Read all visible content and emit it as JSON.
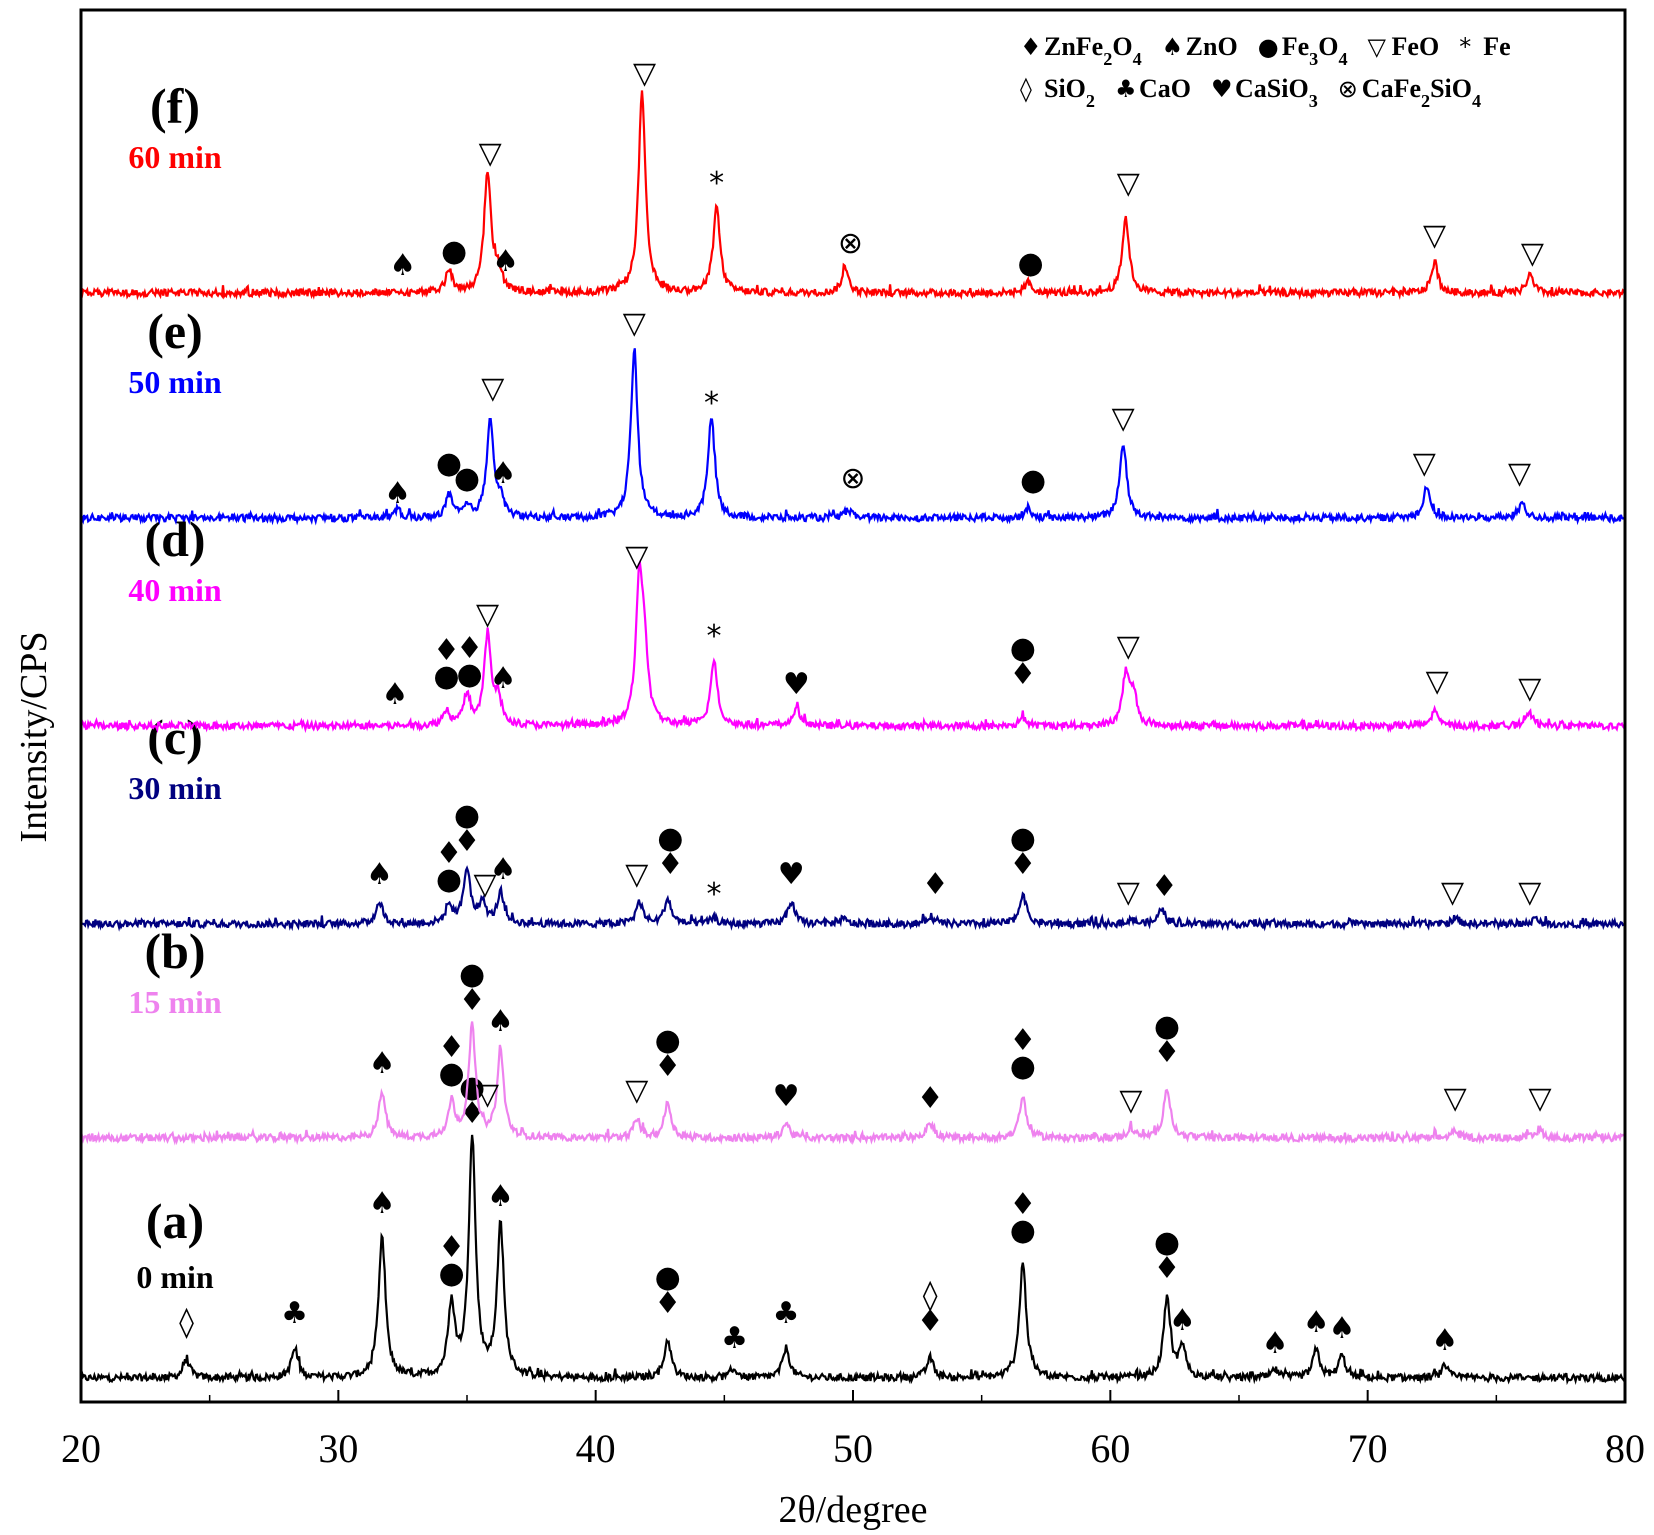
{
  "chart_data": {
    "type": "line",
    "title": "",
    "xlabel": "2θ/degree",
    "ylabel": "Intensity/CPS",
    "xlim": [
      20,
      80
    ],
    "xticks": [
      20,
      30,
      40,
      50,
      60,
      70,
      80
    ],
    "grid": false,
    "colors": {
      "a": "#000000",
      "b": "#ee82ee",
      "c": "#000080",
      "d": "#ff00ff",
      "e": "#0000ff",
      "f": "#ff0000"
    },
    "series": [
      {
        "id": "a",
        "label": "(a)",
        "time": "0 min",
        "color": "#000000",
        "baseline": 0,
        "peaks": [
          [
            24.1,
            18
          ],
          [
            28.3,
            28
          ],
          [
            31.7,
            140
          ],
          [
            34.4,
            70
          ],
          [
            35.2,
            240
          ],
          [
            36.3,
            150
          ],
          [
            42.8,
            38
          ],
          [
            45.4,
            8
          ],
          [
            47.4,
            30
          ],
          [
            53.0,
            20
          ],
          [
            56.6,
            115
          ],
          [
            62.2,
            78
          ],
          [
            62.8,
            30
          ],
          [
            66.4,
            8
          ],
          [
            68.0,
            28
          ],
          [
            69.0,
            22
          ],
          [
            73.0,
            12
          ]
        ],
        "markers": [
          {
            "x": 24.1,
            "y": 46,
            "syms": [
              "SiO2"
            ]
          },
          {
            "x": 28.3,
            "y": 55,
            "syms": [
              "CaO"
            ]
          },
          {
            "x": 31.7,
            "y": 165,
            "syms": [
              "ZnO"
            ]
          },
          {
            "x": 34.4,
            "y": 95,
            "syms": [
              "ZnFe2O4",
              "Fe3O4"
            ]
          },
          {
            "x": 35.2,
            "y": 255,
            "syms": [
              "Fe3O4",
              "ZnFe2O4"
            ]
          },
          {
            "x": 36.3,
            "y": 172,
            "syms": [
              "ZnO"
            ]
          },
          {
            "x": 42.8,
            "y": 65,
            "syms": [
              "Fe3O4",
              "ZnFe2O4"
            ]
          },
          {
            "x": 45.4,
            "y": 30,
            "syms": [
              "CaO"
            ]
          },
          {
            "x": 47.4,
            "y": 55,
            "syms": [
              "CaO"
            ]
          },
          {
            "x": 53.0,
            "y": 47,
            "syms": [
              "SiO2",
              "ZnFe2O4"
            ]
          },
          {
            "x": 56.6,
            "y": 138,
            "syms": [
              "ZnFe2O4",
              "Fe3O4"
            ]
          },
          {
            "x": 62.2,
            "y": 100,
            "syms": [
              "Fe3O4",
              "ZnFe2O4"
            ]
          },
          {
            "x": 62.8,
            "y": 48,
            "syms": [
              "ZnO"
            ]
          },
          {
            "x": 66.4,
            "y": 25,
            "syms": [
              "ZnO"
            ]
          },
          {
            "x": 68.0,
            "y": 46,
            "syms": [
              "ZnO"
            ]
          },
          {
            "x": 69.0,
            "y": 40,
            "syms": [
              "ZnO"
            ]
          },
          {
            "x": 73.0,
            "y": 28,
            "syms": [
              "ZnO"
            ]
          }
        ]
      },
      {
        "id": "b",
        "label": "(b)",
        "time": "15 min",
        "color": "#ee82ee",
        "baseline": 240,
        "peaks": [
          [
            31.7,
            45
          ],
          [
            34.4,
            35
          ],
          [
            35.2,
            110
          ],
          [
            36.3,
            85
          ],
          [
            41.6,
            18
          ],
          [
            42.8,
            35
          ],
          [
            47.4,
            15
          ],
          [
            53.0,
            15
          ],
          [
            56.6,
            40
          ],
          [
            60.8,
            10
          ],
          [
            62.2,
            50
          ],
          [
            73.4,
            8
          ],
          [
            76.7,
            8
          ]
        ],
        "markers": [
          {
            "x": 31.7,
            "y": 65,
            "syms": [
              "ZnO"
            ]
          },
          {
            "x": 34.4,
            "y": 55,
            "syms": [
              "ZnFe2O4",
              "Fe3O4"
            ]
          },
          {
            "x": 35.2,
            "y": 128,
            "syms": [
              "Fe3O4",
              "ZnFe2O4"
            ]
          },
          {
            "x": 35.8,
            "y": 34,
            "syms": [
              "FeO"
            ]
          },
          {
            "x": 36.3,
            "y": 107,
            "syms": [
              "ZnO"
            ]
          },
          {
            "x": 41.6,
            "y": 38,
            "syms": [
              "FeO"
            ]
          },
          {
            "x": 42.8,
            "y": 62,
            "syms": [
              "Fe3O4",
              "ZnFe2O4"
            ]
          },
          {
            "x": 47.4,
            "y": 32,
            "syms": [
              "CaSiO3"
            ]
          },
          {
            "x": 53.0,
            "y": 30,
            "syms": [
              "ZnFe2O4"
            ]
          },
          {
            "x": 56.6,
            "y": 62,
            "syms": [
              "ZnFe2O4",
              "Fe3O4"
            ]
          },
          {
            "x": 60.8,
            "y": 28,
            "syms": [
              "FeO"
            ]
          },
          {
            "x": 62.2,
            "y": 76,
            "syms": [
              "Fe3O4",
              "ZnFe2O4"
            ]
          },
          {
            "x": 73.4,
            "y": 30,
            "syms": [
              "FeO"
            ]
          },
          {
            "x": 76.7,
            "y": 30,
            "syms": [
              "FeO"
            ]
          }
        ]
      },
      {
        "id": "c",
        "label": "(c)",
        "time": "30 min",
        "color": "#000080",
        "baseline": 454,
        "peaks": [
          [
            31.6,
            22
          ],
          [
            34.3,
            18
          ],
          [
            35.0,
            55
          ],
          [
            35.6,
            20
          ],
          [
            36.3,
            30
          ],
          [
            41.7,
            22
          ],
          [
            42.8,
            25
          ],
          [
            44.6,
            6
          ],
          [
            47.6,
            22
          ],
          [
            49.6,
            5
          ],
          [
            53.0,
            8
          ],
          [
            56.6,
            30
          ],
          [
            60.8,
            5
          ],
          [
            62.0,
            15
          ],
          [
            73.4,
            6
          ],
          [
            76.5,
            5
          ]
        ],
        "markers": [
          {
            "x": 31.6,
            "y": 40,
            "syms": [
              "ZnO"
            ]
          },
          {
            "x": 34.3,
            "y": 35,
            "syms": [
              "ZnFe2O4",
              "Fe3O4"
            ]
          },
          {
            "x": 35.0,
            "y": 73,
            "syms": [
              "Fe3O4",
              "ZnFe2O4"
            ]
          },
          {
            "x": 35.7,
            "y": 30,
            "syms": [
              "FeO"
            ]
          },
          {
            "x": 36.4,
            "y": 45,
            "syms": [
              "ZnO"
            ]
          },
          {
            "x": 41.6,
            "y": 40,
            "syms": [
              "FeO"
            ]
          },
          {
            "x": 42.9,
            "y": 50,
            "syms": [
              "Fe3O4",
              "ZnFe2O4"
            ]
          },
          {
            "x": 44.6,
            "y": 20,
            "syms": [
              "Fe"
            ]
          },
          {
            "x": 47.6,
            "y": 40,
            "syms": [
              "CaSiO3"
            ]
          },
          {
            "x": 53.2,
            "y": 30,
            "syms": [
              "ZnFe2O4"
            ]
          },
          {
            "x": 56.6,
            "y": 50,
            "syms": [
              "Fe3O4",
              "ZnFe2O4"
            ]
          },
          {
            "x": 60.7,
            "y": 22,
            "syms": [
              "FeO"
            ]
          },
          {
            "x": 62.1,
            "y": 28,
            "syms": [
              "ZnFe2O4"
            ]
          },
          {
            "x": 73.3,
            "y": 22,
            "syms": [
              "FeO"
            ]
          },
          {
            "x": 76.3,
            "y": 22,
            "syms": [
              "FeO"
            ]
          }
        ]
      },
      {
        "id": "d",
        "label": "(d)",
        "time": "40 min",
        "color": "#ff00ff",
        "baseline": 652,
        "peaks": [
          [
            34.2,
            15
          ],
          [
            35.0,
            30
          ],
          [
            35.8,
            90
          ],
          [
            36.2,
            25
          ],
          [
            41.7,
            140
          ],
          [
            41.9,
            60
          ],
          [
            44.6,
            65
          ],
          [
            47.8,
            18
          ],
          [
            56.6,
            8
          ],
          [
            60.6,
            50
          ],
          [
            60.9,
            30
          ],
          [
            72.6,
            15
          ],
          [
            76.3,
            12
          ]
        ],
        "markers": [
          {
            "x": 32.2,
            "y": 22,
            "syms": [
              "ZnO"
            ]
          },
          {
            "x": 34.2,
            "y": 40,
            "syms": [
              "ZnFe2O4",
              "Fe3O4"
            ]
          },
          {
            "x": 35.1,
            "y": 42,
            "syms": [
              "ZnFe2O4",
              "Fe3O4"
            ]
          },
          {
            "x": 35.8,
            "y": 102,
            "syms": [
              "FeO"
            ]
          },
          {
            "x": 36.4,
            "y": 38,
            "syms": [
              "ZnO"
            ]
          },
          {
            "x": 41.6,
            "y": 160,
            "syms": [
              "FeO"
            ]
          },
          {
            "x": 44.6,
            "y": 80,
            "syms": [
              "Fe"
            ]
          },
          {
            "x": 47.8,
            "y": 32,
            "syms": [
              "CaSiO3"
            ]
          },
          {
            "x": 56.6,
            "y": 42,
            "syms": [
              "Fe3O4",
              "ZnFe2O4"
            ]
          },
          {
            "x": 60.7,
            "y": 70,
            "syms": [
              "FeO"
            ]
          },
          {
            "x": 72.7,
            "y": 35,
            "syms": [
              "FeO"
            ]
          },
          {
            "x": 76.3,
            "y": 28,
            "syms": [
              "FeO"
            ]
          }
        ]
      },
      {
        "id": "e",
        "label": "(e)",
        "time": "50 min",
        "color": "#0000ff",
        "baseline": 860,
        "peaks": [
          [
            32.3,
            8
          ],
          [
            34.3,
            22
          ],
          [
            35.0,
            10
          ],
          [
            35.9,
            100
          ],
          [
            36.3,
            15
          ],
          [
            41.5,
            165
          ],
          [
            44.5,
            100
          ],
          [
            49.8,
            8
          ],
          [
            56.8,
            10
          ],
          [
            60.5,
            75
          ],
          [
            72.3,
            32
          ],
          [
            76.0,
            15
          ]
        ],
        "markers": [
          {
            "x": 32.3,
            "y": 15,
            "syms": [
              "ZnO"
            ]
          },
          {
            "x": 34.3,
            "y": 45,
            "syms": [
              "Fe3O4"
            ]
          },
          {
            "x": 35.0,
            "y": 30,
            "syms": [
              "Fe3O4"
            ]
          },
          {
            "x": 36.0,
            "y": 120,
            "syms": [
              "FeO"
            ]
          },
          {
            "x": 36.4,
            "y": 35,
            "syms": [
              "ZnO"
            ]
          },
          {
            "x": 41.5,
            "y": 185,
            "syms": [
              "FeO"
            ]
          },
          {
            "x": 44.5,
            "y": 105,
            "syms": [
              "Fe"
            ]
          },
          {
            "x": 50.0,
            "y": 30,
            "syms": [
              "CaFe2SiO4"
            ]
          },
          {
            "x": 57.0,
            "y": 28,
            "syms": [
              "Fe3O4"
            ]
          },
          {
            "x": 60.5,
            "y": 90,
            "syms": [
              "FeO"
            ]
          },
          {
            "x": 72.2,
            "y": 45,
            "syms": [
              "FeO"
            ]
          },
          {
            "x": 75.9,
            "y": 35,
            "syms": [
              "FeO"
            ]
          }
        ]
      },
      {
        "id": "f",
        "label": "(f)",
        "time": "60 min",
        "color": "#ff0000",
        "baseline": 1085,
        "peaks": [
          [
            34.3,
            22
          ],
          [
            35.8,
            120
          ],
          [
            36.2,
            20
          ],
          [
            41.8,
            200
          ],
          [
            44.7,
            85
          ],
          [
            49.7,
            25
          ],
          [
            56.8,
            10
          ],
          [
            60.6,
            75
          ],
          [
            72.6,
            30
          ],
          [
            76.3,
            18
          ]
        ],
        "markers": [
          {
            "x": 32.5,
            "y": 18,
            "syms": [
              "ZnO"
            ]
          },
          {
            "x": 34.5,
            "y": 32,
            "syms": [
              "Fe3O4"
            ]
          },
          {
            "x": 35.9,
            "y": 130,
            "syms": [
              "FeO"
            ]
          },
          {
            "x": 36.5,
            "y": 22,
            "syms": [
              "ZnO"
            ]
          },
          {
            "x": 41.9,
            "y": 210,
            "syms": [
              "FeO"
            ]
          },
          {
            "x": 44.7,
            "y": 100,
            "syms": [
              "Fe"
            ]
          },
          {
            "x": 49.9,
            "y": 40,
            "syms": [
              "CaFe2SiO4"
            ]
          },
          {
            "x": 56.9,
            "y": 20,
            "syms": [
              "Fe3O4"
            ]
          },
          {
            "x": 60.7,
            "y": 100,
            "syms": [
              "FeO"
            ]
          },
          {
            "x": 72.6,
            "y": 48,
            "syms": [
              "FeO"
            ]
          },
          {
            "x": 76.4,
            "y": 30,
            "syms": [
              "FeO"
            ]
          }
        ]
      }
    ],
    "legend": {
      "placement": "top-right",
      "rows": [
        [
          {
            "sym": "ZnFe2O4",
            "text": "ZnFe2O4"
          },
          {
            "sym": "ZnO",
            "text": "ZnO"
          },
          {
            "sym": "Fe3O4",
            "text": "Fe3O4"
          },
          {
            "sym": "FeO",
            "text": "FeO"
          },
          {
            "sym": "Fe",
            "text": "Fe"
          }
        ],
        [
          {
            "sym": "SiO2",
            "text": "SiO2"
          },
          {
            "sym": "CaO",
            "text": "CaO"
          },
          {
            "sym": "CaSiO3",
            "text": "CaSiO3"
          },
          {
            "sym": "CaFe2SiO4",
            "text": "CaFe2SiO4"
          }
        ]
      ]
    },
    "symbols": {
      "ZnFe2O4": "♦",
      "ZnO": "♠",
      "Fe3O4": "●",
      "FeO": "▽",
      "Fe": "*",
      "SiO2": "◊",
      "CaO": "♣",
      "CaSiO3": "♥",
      "CaFe2SiO4": "⊗"
    }
  }
}
